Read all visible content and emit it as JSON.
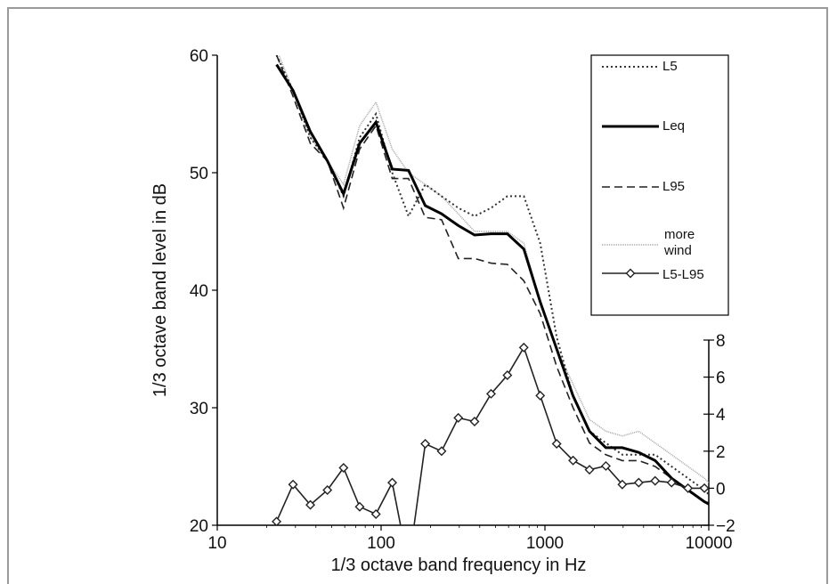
{
  "chart_data": {
    "type": "line",
    "xlabel": "1/3 octave band frequency in Hz",
    "ylabel": "1/3 octave band level in dB",
    "y2label": "",
    "xscale": "log",
    "xlim": [
      10,
      10000
    ],
    "ylim": [
      20,
      60
    ],
    "y2lim": [
      -2,
      8
    ],
    "x_ticks": [
      "10",
      "100",
      "1000",
      "10000"
    ],
    "y_ticks": [
      "20",
      "30",
      "40",
      "50",
      "60"
    ],
    "y2_ticks": [
      "−2",
      "0",
      "2",
      "4",
      "6",
      "8"
    ],
    "legend_position": "top-right",
    "grid": false,
    "series": [
      {
        "name": "L5",
        "style": "dotted",
        "color": "#333333",
        "axis": "left",
        "x": [
          23,
          29,
          37,
          47,
          59,
          74,
          93,
          117,
          147,
          186,
          234,
          296,
          372,
          469,
          590,
          743,
          936,
          1179,
          1485,
          1870,
          2355,
          2966,
          3736,
          4705,
          5927,
          7465,
          9402,
          11000
        ],
        "y": [
          60,
          57,
          53,
          51,
          48,
          53,
          55,
          50,
          46.3,
          49,
          48,
          47,
          46.3,
          47,
          48,
          48,
          44,
          36,
          31,
          28,
          27,
          26,
          26,
          26,
          25,
          24,
          23,
          22
        ]
      },
      {
        "name": "Leq",
        "style": "solid-thick",
        "color": "#000000",
        "axis": "left",
        "x": [
          23,
          29,
          37,
          47,
          59,
          74,
          93,
          117,
          147,
          186,
          234,
          296,
          372,
          469,
          590,
          743,
          936,
          1179,
          1485,
          1870,
          2355,
          2966,
          3736,
          4705,
          5927,
          7465,
          9402,
          11000
        ],
        "y": [
          59.2,
          57,
          53.5,
          51,
          48.2,
          52.5,
          54.3,
          50.3,
          50.2,
          47.2,
          46.5,
          45.5,
          44.7,
          44.8,
          44.8,
          43.5,
          39,
          35,
          31,
          28,
          26.6,
          26.6,
          26.2,
          25.5,
          24,
          23,
          22,
          21.5
        ]
      },
      {
        "name": "L95",
        "style": "dashed",
        "color": "#222222",
        "axis": "left",
        "x": [
          23,
          29,
          37,
          47,
          59,
          74,
          93,
          117,
          147,
          186,
          234,
          296,
          372,
          469,
          590,
          743,
          936,
          1179,
          1485,
          1870,
          2355,
          2966,
          3736,
          4705,
          5927,
          7465,
          9402,
          11000
        ],
        "y": [
          60,
          56.5,
          52.5,
          51,
          47,
          52,
          54,
          49.5,
          49.5,
          46.2,
          46,
          42.7,
          42.7,
          42.3,
          42.2,
          40.8,
          38,
          33.5,
          30,
          27,
          26,
          25.5,
          25.5,
          25,
          24,
          23,
          22,
          21.8
        ]
      },
      {
        "name": "more wind",
        "style": "solid-thin",
        "color": "#a8a8a8",
        "axis": "left",
        "x": [
          23,
          29,
          37,
          47,
          59,
          74,
          93,
          117,
          147,
          186,
          234,
          296,
          372,
          469,
          590,
          743,
          936,
          1179,
          1485,
          1870,
          2355,
          2966,
          3736,
          4705,
          5927,
          7465,
          9402,
          11000
        ],
        "y": [
          60.5,
          57,
          53,
          51,
          49,
          54,
          56,
          52,
          50,
          49,
          48,
          46.5,
          45,
          45,
          45,
          44,
          39,
          35,
          32,
          29,
          28,
          27.6,
          28,
          27,
          26,
          25,
          24,
          23
        ]
      },
      {
        "name": "L5-L95",
        "style": "solid-markers",
        "color": "#222222",
        "axis": "right",
        "x": [
          23,
          29,
          37,
          47,
          59,
          74,
          93,
          117,
          147,
          186,
          234,
          296,
          372,
          469,
          590,
          743,
          936,
          1179,
          1485,
          1870,
          2355,
          2966,
          3736,
          4705,
          5927,
          7465,
          9402,
          11000
        ],
        "y": [
          -1.8,
          0.2,
          -0.9,
          -0.1,
          1.1,
          -1,
          -1.4,
          0.3,
          -4.2,
          2.4,
          2,
          3.8,
          3.6,
          5.1,
          6.1,
          7.6,
          5,
          2.4,
          1.5,
          1,
          1.2,
          0.2,
          0.3,
          0.4,
          0.3,
          0,
          0,
          0
        ]
      }
    ]
  }
}
